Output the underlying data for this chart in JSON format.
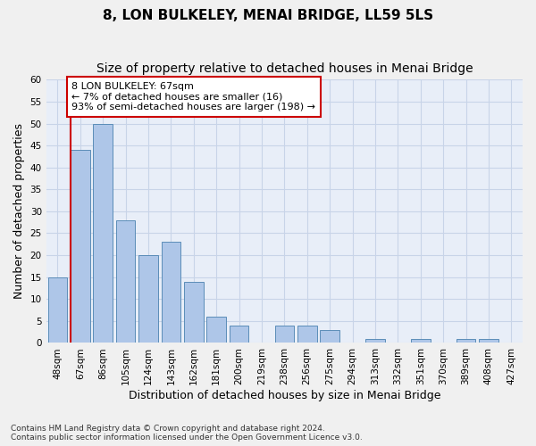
{
  "title": "8, LON BULKELEY, MENAI BRIDGE, LL59 5LS",
  "subtitle": "Size of property relative to detached houses in Menai Bridge",
  "xlabel": "Distribution of detached houses by size in Menai Bridge",
  "ylabel": "Number of detached properties",
  "footer_line1": "Contains HM Land Registry data © Crown copyright and database right 2024.",
  "footer_line2": "Contains public sector information licensed under the Open Government Licence v3.0.",
  "categories": [
    "48sqm",
    "67sqm",
    "86sqm",
    "105sqm",
    "124sqm",
    "143sqm",
    "162sqm",
    "181sqm",
    "200sqm",
    "219sqm",
    "238sqm",
    "256sqm",
    "275sqm",
    "294sqm",
    "313sqm",
    "332sqm",
    "351sqm",
    "370sqm",
    "389sqm",
    "408sqm",
    "427sqm"
  ],
  "values": [
    15,
    44,
    50,
    28,
    20,
    23,
    14,
    6,
    4,
    0,
    4,
    4,
    3,
    0,
    1,
    0,
    1,
    0,
    1,
    1,
    0
  ],
  "bar_color": "#aec6e8",
  "bar_edge_color": "#5b8db8",
  "highlight_bar_index": 1,
  "highlight_line_color": "#cc0000",
  "ylim": [
    0,
    60
  ],
  "yticks": [
    0,
    5,
    10,
    15,
    20,
    25,
    30,
    35,
    40,
    45,
    50,
    55,
    60
  ],
  "annotation_text": "8 LON BULKELEY: 67sqm\n← 7% of detached houses are smaller (16)\n93% of semi-detached houses are larger (198) →",
  "annotation_box_color": "#ffffff",
  "annotation_box_edge": "#cc0000",
  "grid_color": "#c8d4e8",
  "background_color": "#e8eef8",
  "fig_background_color": "#f0f0f0",
  "title_fontsize": 11,
  "subtitle_fontsize": 10,
  "tick_fontsize": 7.5,
  "ylabel_fontsize": 9,
  "xlabel_fontsize": 9,
  "annotation_fontsize": 8
}
